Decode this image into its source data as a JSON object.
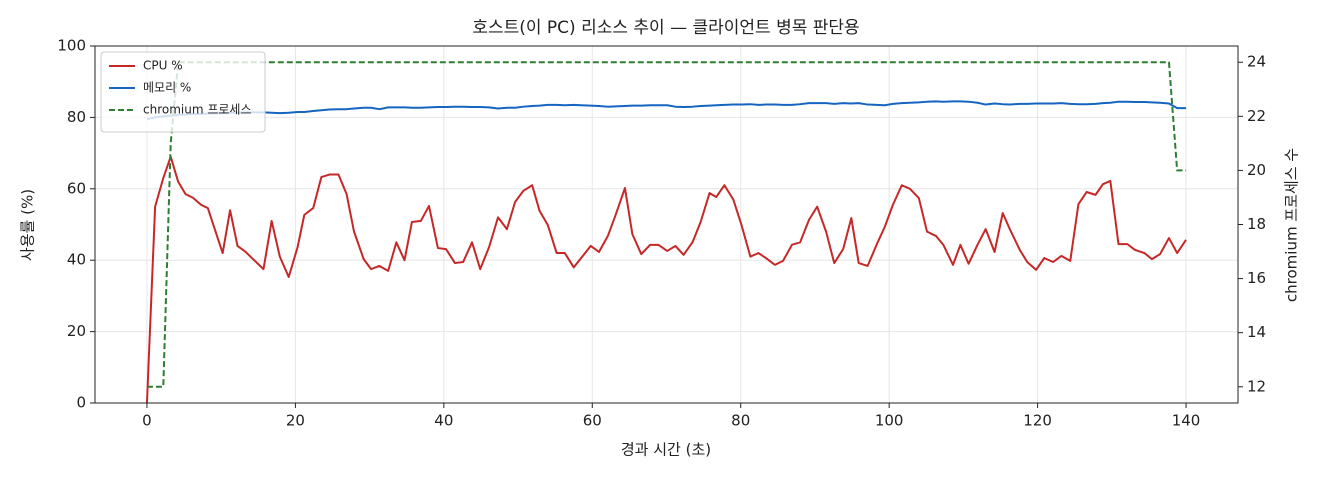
{
  "chart_data": {
    "type": "line",
    "title": "호스트(이 PC) 리소스 추이 — 클라이언트 병목 판단용",
    "xlabel": "경과 시간 (초)",
    "ylabel": "사용률 (%)",
    "y2label": "chromium 프로세스 수",
    "x": [
      0,
      1.1,
      2.2,
      3.2,
      4.2,
      5.2,
      6.2,
      7.3,
      8.2,
      10.2,
      11.2,
      12.2,
      13.2,
      14.2,
      15.7,
      16.8,
      17.9,
      19.1,
      20.3,
      21.2,
      22.4,
      23.5,
      24.6,
      25.8,
      26.9,
      27.9,
      29.2,
      30.2,
      31.3,
      32.5,
      33.6,
      34.7,
      35.7,
      36.9,
      38,
      39.2,
      40.3,
      41.5,
      42.6,
      43.8,
      44.9,
      46.1,
      47.3,
      48.5,
      49.6,
      50.7,
      51.9,
      52.9,
      54,
      55.2,
      56.3,
      57.5,
      58.5,
      59.8,
      60.9,
      62.1,
      63.1,
      64.4,
      65.4,
      66.6,
      67.8,
      68.9,
      70.1,
      71.2,
      72.3,
      73.5,
      74.6,
      75.8,
      76.7,
      77.8,
      79,
      80.1,
      81.3,
      82.4,
      83.4,
      84.6,
      85.7,
      86.9,
      88,
      89.2,
      90.3,
      91.5,
      92.6,
      93.8,
      94.9,
      95.9,
      97.1,
      98.3,
      99.4,
      100.5,
      101.7,
      102.8,
      104,
      105.1,
      106.3,
      107.3,
      108.6,
      109.6,
      110.7,
      111.9,
      113,
      114.2,
      115.3,
      116.3,
      117.6,
      118.6,
      119.8,
      120.9,
      122.1,
      123.2,
      124.4,
      125.5,
      126.6,
      127.8,
      128.8,
      129.8,
      130.9,
      132.1,
      133.1,
      134.4,
      135.4,
      136.5,
      137.7,
      138.8,
      140
    ],
    "series": [
      {
        "name": "CPU %",
        "color": "#c62828",
        "dash": false,
        "values": [
          0,
          55,
          63,
          69,
          62,
          58.5,
          57.5,
          55.5,
          54.6,
          42,
          54,
          44,
          42.5,
          40.5,
          37.5,
          51,
          41,
          35.3,
          43.7,
          52.7,
          54.6,
          63.3,
          64,
          64,
          58.5,
          48,
          40.3,
          37.5,
          38.4,
          37,
          45,
          40,
          50.7,
          51,
          55.2,
          43.4,
          43.1,
          39.2,
          39.5,
          45,
          37.5,
          43.7,
          52,
          48.7,
          56.3,
          59.4,
          61,
          53.8,
          49.9,
          42,
          42,
          38,
          40.6,
          44,
          42.3,
          46.8,
          52.4,
          60.2,
          47.3,
          41.7,
          44.3,
          44.3,
          42.6,
          44,
          41.5,
          45,
          50.7,
          58.8,
          57.7,
          61,
          57,
          49.9,
          41,
          42,
          40.6,
          38.7,
          39.8,
          44.3,
          45,
          51.3,
          55,
          48,
          39.2,
          43.1,
          51.8,
          39.2,
          38.4,
          44.3,
          49.3,
          55.5,
          61,
          60,
          57.4,
          48,
          46.8,
          44.3,
          38.7,
          44.3,
          39,
          44.3,
          48.7,
          42.3,
          53.2,
          48.5,
          42.9,
          39.5,
          37.3,
          40.6,
          39.5,
          41.2,
          39.8,
          55.7,
          59.1,
          58.3,
          61.3,
          62.2,
          44.5,
          44.5,
          42.9,
          42,
          40.3,
          41.7,
          46.2,
          42,
          45.7
        ]
      },
      {
        "name": "메모리 %",
        "color": "#1565c0",
        "dash": false,
        "values": [
          79.5,
          80,
          80.3,
          80.5,
          80.7,
          80.8,
          81,
          81,
          81.1,
          81.2,
          81.3,
          81.3,
          81.4,
          81.4,
          81.4,
          81.3,
          81.2,
          81.3,
          81.5,
          81.5,
          81.8,
          82,
          82.2,
          82.3,
          82.3,
          82.5,
          82.7,
          82.7,
          82.3,
          82.8,
          82.8,
          82.8,
          82.7,
          82.7,
          82.8,
          82.9,
          82.9,
          83,
          83,
          82.9,
          82.9,
          82.8,
          82.5,
          82.7,
          82.7,
          83,
          83.2,
          83.3,
          83.5,
          83.5,
          83.4,
          83.5,
          83.4,
          83.3,
          83.2,
          83,
          83.1,
          83.2,
          83.3,
          83.3,
          83.4,
          83.4,
          83.4,
          83,
          82.9,
          83,
          83.2,
          83.3,
          83.4,
          83.5,
          83.6,
          83.6,
          83.7,
          83.5,
          83.6,
          83.6,
          83.5,
          83.5,
          83.7,
          84,
          84,
          84,
          83.8,
          84,
          83.9,
          84,
          83.6,
          83.5,
          83.4,
          83.8,
          84,
          84.1,
          84.2,
          84.4,
          84.5,
          84.4,
          84.5,
          84.5,
          84.4,
          84.1,
          83.6,
          83.9,
          83.7,
          83.6,
          83.8,
          83.8,
          83.9,
          83.9,
          83.9,
          84,
          83.8,
          83.7,
          83.7,
          83.8,
          84,
          84.1,
          84.4,
          84.4,
          84.3,
          84.3,
          84.2,
          84.1,
          83.9,
          82.6,
          82.6
        ]
      },
      {
        "name": "chromium 프로세스",
        "color": "#2e7d32",
        "dash": true,
        "axis": "y2",
        "values": [
          12,
          12,
          12,
          21,
          24,
          24,
          24,
          24,
          24,
          24,
          24,
          24,
          24,
          24,
          24,
          24,
          24,
          24,
          24,
          24,
          24,
          24,
          24,
          24,
          24,
          24,
          24,
          24,
          24,
          24,
          24,
          24,
          24,
          24,
          24,
          24,
          24,
          24,
          24,
          24,
          24,
          24,
          24,
          24,
          24,
          24,
          24,
          24,
          24,
          24,
          24,
          24,
          24,
          24,
          24,
          24,
          24,
          24,
          24,
          24,
          24,
          24,
          24,
          24,
          24,
          24,
          24,
          24,
          24,
          24,
          24,
          24,
          24,
          24,
          24,
          24,
          24,
          24,
          24,
          24,
          24,
          24,
          24,
          24,
          24,
          24,
          24,
          24,
          24,
          24,
          24,
          24,
          24,
          24,
          24,
          24,
          24,
          24,
          24,
          24,
          24,
          24,
          24,
          24,
          24,
          24,
          24,
          24,
          24,
          24,
          24,
          24,
          24,
          24,
          24,
          24,
          24,
          24,
          24,
          24,
          24,
          24,
          24,
          20,
          20
        ]
      }
    ],
    "xlim": [
      -7,
      147
    ],
    "xticks": [
      0,
      20,
      40,
      60,
      80,
      100,
      120,
      140
    ],
    "ylim": [
      0,
      100
    ],
    "yticks": [
      0,
      20,
      40,
      60,
      80,
      100
    ],
    "y2lim": [
      11.4,
      24.6
    ],
    "y2ticks": [
      12,
      14,
      16,
      18,
      20,
      22,
      24
    ],
    "grid": true,
    "legend": "upper left"
  }
}
